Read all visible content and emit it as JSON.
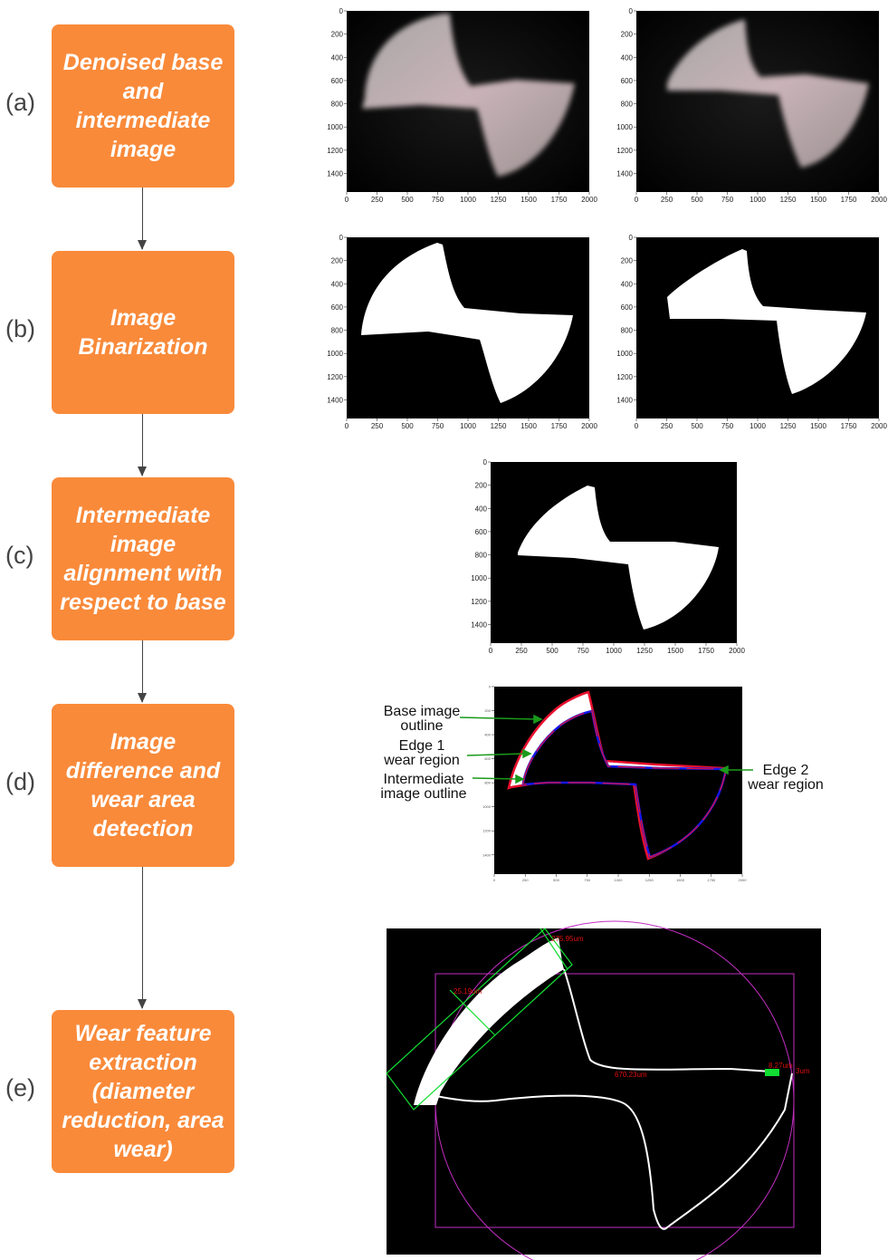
{
  "steps": [
    {
      "letter": "(a)",
      "text": "Denoised base and intermediate image"
    },
    {
      "letter": "(b)",
      "text": "Image Binarization"
    },
    {
      "letter": "(c)",
      "text": "Intermediate image alignment with respect to base"
    },
    {
      "letter": "(d)",
      "text": "Image difference and wear area detection"
    },
    {
      "letter": "(e)",
      "text": "Wear feature extraction (diameter reduction, area wear)"
    }
  ],
  "axes": {
    "y_ticks": [
      "0",
      "200",
      "400",
      "600",
      "800",
      "1000",
      "1200",
      "1400"
    ],
    "x_ticks": [
      "0",
      "250",
      "500",
      "750",
      "1000",
      "1250",
      "1500",
      "1750",
      "2000"
    ]
  },
  "annotations": {
    "base_outline": [
      "Base image",
      "outline"
    ],
    "edge1": [
      "Edge 1",
      "wear region"
    ],
    "intermediate_outline": [
      "Intermediate",
      "image outline"
    ],
    "edge2": [
      "Edge 2",
      "wear region"
    ]
  },
  "measurements": {
    "m1": "275.95um",
    "m2": "25.19um",
    "m3": "670.23um",
    "m4": "8.27um",
    "m5": "3um"
  },
  "colors": {
    "step_box": "#f98a3a",
    "outline_base": "#e8102e",
    "outline_intermediate": "#1010e0",
    "annotation_arrow": "#1a9a1a",
    "measure_line": "#11dd33",
    "circle": "#c22ec2"
  }
}
